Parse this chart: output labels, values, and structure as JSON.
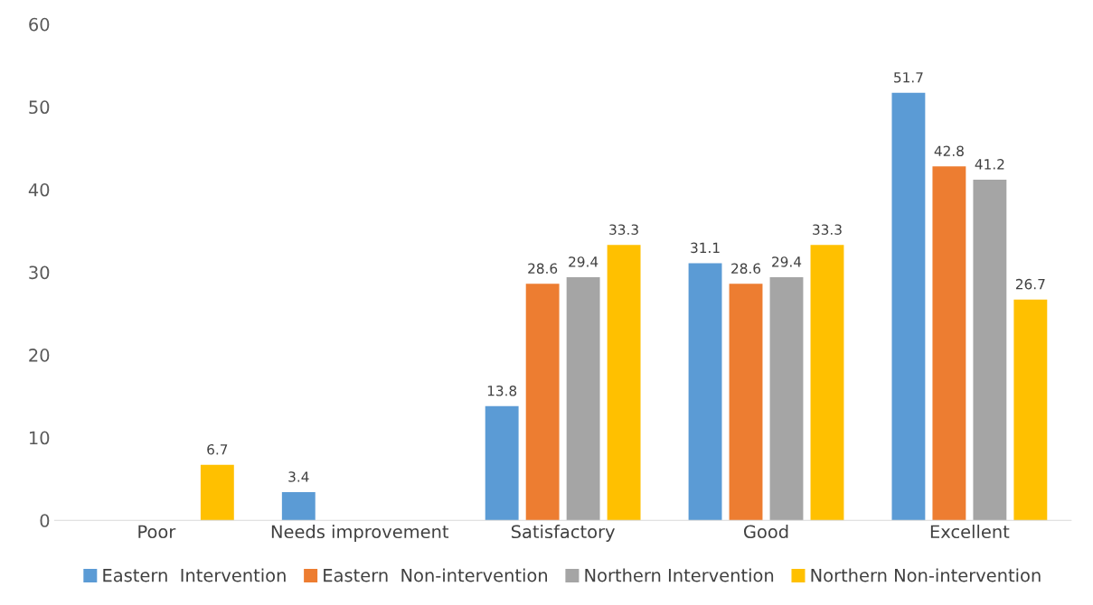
{
  "chart_data": {
    "type": "bar",
    "categories": [
      "Poor",
      "Needs improvement",
      "Satisfactory",
      "Good",
      "Excellent"
    ],
    "series": [
      {
        "name": "Eastern  Intervention",
        "color": "#5b9bd5",
        "values": [
          null,
          3.4,
          13.8,
          31.1,
          51.7
        ]
      },
      {
        "name": "Eastern  Non-intervention",
        "color": "#ed7d31",
        "values": [
          null,
          null,
          28.6,
          28.6,
          42.8
        ]
      },
      {
        "name": "Northern Intervention",
        "color": "#a5a5a5",
        "values": [
          null,
          null,
          29.4,
          29.4,
          41.2
        ]
      },
      {
        "name": "Northern Non-intervention",
        "color": "#ffc000",
        "values": [
          6.7,
          null,
          33.3,
          33.3,
          26.7
        ]
      }
    ],
    "ylim": [
      0,
      60
    ],
    "yticks": [
      0,
      10,
      20,
      30,
      40,
      50,
      60
    ],
    "grid": false,
    "legend": "bottom",
    "data_labels": true
  }
}
